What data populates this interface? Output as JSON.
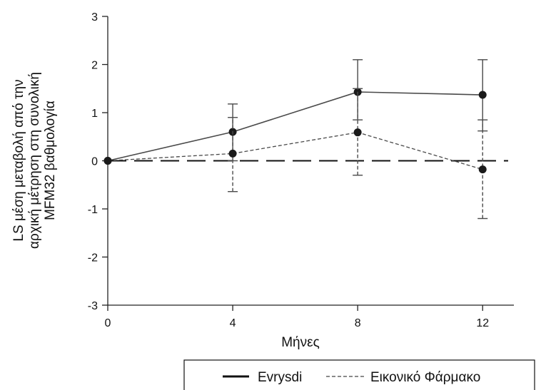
{
  "chart_data": {
    "type": "line",
    "xlabel": "Μήνες",
    "ylabel_lines": [
      "LS μέση μεταβολή από την",
      "αρχική μέτρηση στη συνολική",
      "MFM32 βαθμολογία"
    ],
    "x_ticks": [
      0,
      4,
      8,
      12
    ],
    "y_ticks": [
      -3,
      -2,
      -1,
      0,
      1,
      2,
      3
    ],
    "xlim": [
      0,
      13
    ],
    "ylim": [
      -3,
      3
    ],
    "reference_line_y": 0,
    "series": [
      {
        "name": "Evrysdi",
        "style": "solid",
        "color": "#4a4a4a",
        "x": [
          0,
          4,
          8,
          12
        ],
        "y": [
          0,
          0.6,
          1.43,
          1.37
        ],
        "error_low": [
          0,
          0.0,
          0.85,
          0.62
        ],
        "error_high": [
          0,
          1.18,
          2.1,
          2.1
        ]
      },
      {
        "name": "Εικονικό Φάρμακο",
        "style": "dashed",
        "color": "#4a4a4a",
        "x": [
          0,
          4,
          8,
          12
        ],
        "y": [
          0,
          0.15,
          0.59,
          -0.18
        ],
        "error_low": [
          0,
          -0.64,
          -0.3,
          -1.2
        ],
        "error_high": [
          0,
          0.9,
          1.5,
          0.85
        ]
      }
    ],
    "legend": {
      "placement": "bottom-right",
      "items": [
        "Evrysdi",
        "Εικονικό Φάρμακο"
      ]
    },
    "grid": false
  }
}
